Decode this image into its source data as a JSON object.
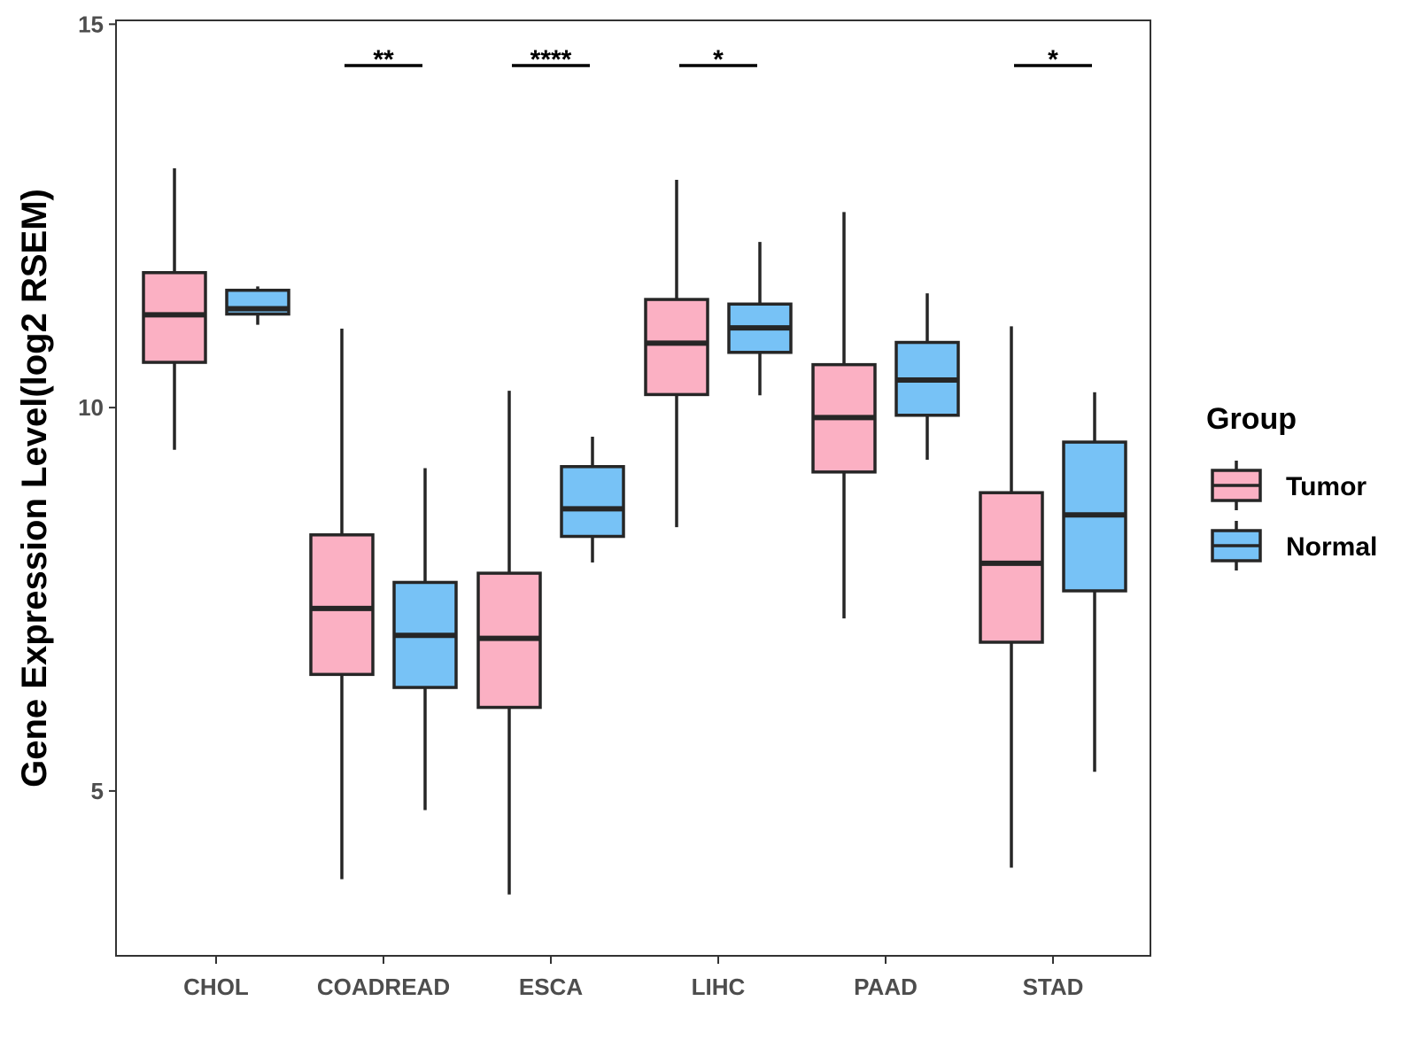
{
  "chart_data": {
    "type": "boxplot",
    "title": "",
    "xlabel": "",
    "ylabel": "Gene Expression Level(log2 RSEM)",
    "ylim": [
      2.85,
      15.05
    ],
    "yticks": [
      5,
      10,
      15
    ],
    "categories": [
      "CHOL",
      "COADREAD",
      "ESCA",
      "LIHC",
      "PAAD",
      "STAD"
    ],
    "groups": [
      {
        "name": "Tumor",
        "color": "#FBB0C3"
      },
      {
        "name": "Normal",
        "color": "#77C2F6"
      }
    ],
    "series": [
      {
        "name": "Tumor",
        "boxes": [
          {
            "min": 9.45,
            "q1": 10.59,
            "median": 11.21,
            "q3": 11.76,
            "max": 13.12
          },
          {
            "min": 3.85,
            "q1": 6.52,
            "median": 7.38,
            "q3": 8.34,
            "max": 11.03
          },
          {
            "min": 3.65,
            "q1": 6.09,
            "median": 6.99,
            "q3": 7.84,
            "max": 10.22
          },
          {
            "min": 8.44,
            "q1": 10.17,
            "median": 10.84,
            "q3": 11.41,
            "max": 12.97
          },
          {
            "min": 7.25,
            "q1": 9.16,
            "median": 9.87,
            "q3": 10.56,
            "max": 12.55
          },
          {
            "min": 4.0,
            "q1": 6.94,
            "median": 7.97,
            "q3": 8.89,
            "max": 11.06
          }
        ]
      },
      {
        "name": "Normal",
        "boxes": [
          {
            "min": 11.08,
            "q1": 11.22,
            "median": 11.29,
            "q3": 11.53,
            "max": 11.58
          },
          {
            "min": 4.75,
            "q1": 6.35,
            "median": 7.03,
            "q3": 7.72,
            "max": 9.21
          },
          {
            "min": 7.98,
            "q1": 8.32,
            "median": 8.68,
            "q3": 9.23,
            "max": 9.62
          },
          {
            "min": 10.16,
            "q1": 10.72,
            "median": 11.04,
            "q3": 11.35,
            "max": 12.16
          },
          {
            "min": 9.32,
            "q1": 9.9,
            "median": 10.36,
            "q3": 10.85,
            "max": 11.49
          },
          {
            "min": 5.25,
            "q1": 7.61,
            "median": 8.6,
            "q3": 9.55,
            "max": 10.2
          }
        ]
      }
    ],
    "significance": [
      {
        "category": "COADREAD",
        "label": "**"
      },
      {
        "category": "ESCA",
        "label": "****"
      },
      {
        "category": "LIHC",
        "label": "*"
      },
      {
        "category": "STAD",
        "label": "*"
      }
    ],
    "legend": {
      "title": "Group",
      "position": "right"
    }
  }
}
